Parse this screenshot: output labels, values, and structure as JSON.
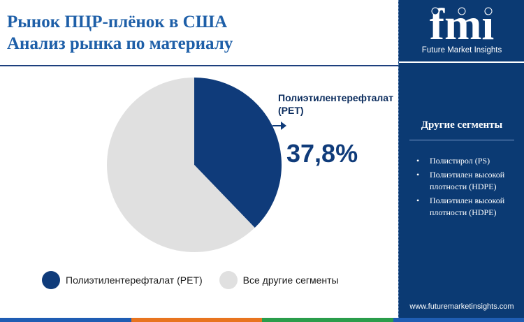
{
  "title": {
    "line1": "Рынок ПЦР-плёнок в США",
    "line2": "Анализ рынка по материалу"
  },
  "colors": {
    "primary": "#0f3b7a",
    "other": "#e0e0e0",
    "title": "#1e5fa8",
    "sidebar": "#0b3a73",
    "bottom_bar": [
      "#1f5db3",
      "#e8741f",
      "#2a9d4b",
      "#1f5db3"
    ]
  },
  "chart_data": {
    "type": "pie",
    "title": "",
    "slices": [
      {
        "label": "Полиэтилентерефталат (PET)",
        "value": 37.8,
        "color": "#0f3b7a"
      },
      {
        "label": "Все другие сегменты",
        "value": 62.2,
        "color": "#e0e0e0"
      }
    ],
    "callout": {
      "label": "Полиэтилентерефталат (PET)",
      "value": "37,8%"
    },
    "legend_position": "bottom"
  },
  "legend": [
    {
      "label": "Полиэтилентерефталат (PET)",
      "color": "#0f3b7a"
    },
    {
      "label": "Все другие сегменты",
      "color": "#e0e0e0"
    }
  ],
  "sidebar": {
    "logo_text": "fmi",
    "logo_subtitle": "Future Market Insights",
    "segments_title": "Другие сегменты",
    "segments": [
      "Полистирол (PS)",
      "Полиэтилен высокой плотности (HDPE)",
      "Полиэтилен высокой плотности (HDPE)"
    ],
    "website": "www.futuremarketinsights.com"
  }
}
